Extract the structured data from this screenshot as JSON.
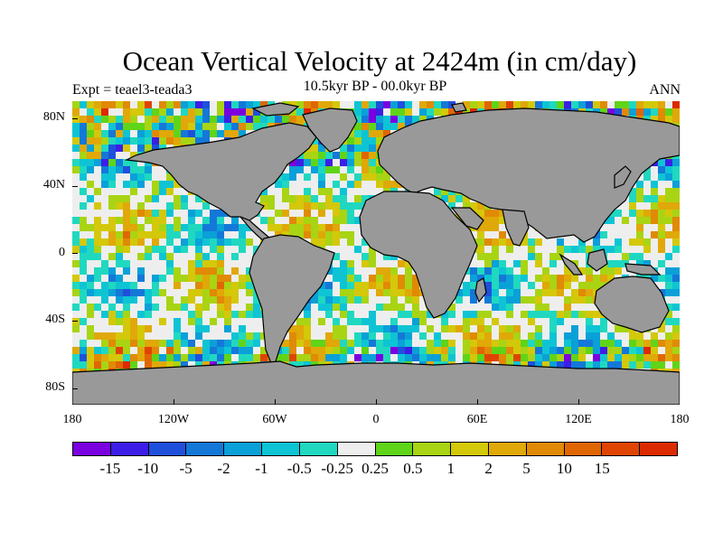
{
  "header": {
    "title": "Ocean Vertical Velocity at 2424m (in cm/day)",
    "experiment": "Expt = teael3-teada3",
    "period": "10.5kyr BP - 00.0kyr BP",
    "season": "ANN"
  },
  "axes": {
    "lat_ticks": [
      "80N",
      "40N",
      "0",
      "40S",
      "80S"
    ],
    "lon_ticks": [
      "180",
      "120W",
      "60W",
      "0",
      "60E",
      "120E",
      "180"
    ]
  },
  "colorbar": {
    "colors": [
      "#7a00e0",
      "#3c1ee6",
      "#1e50dc",
      "#1478d8",
      "#0aa0d8",
      "#0ec4d4",
      "#20d8c0",
      "#eeeeee",
      "#60d418",
      "#a8d414",
      "#d4c80a",
      "#e0a808",
      "#e08a06",
      "#e06604",
      "#e04402",
      "#dc2a00"
    ],
    "labels": [
      "-15",
      "-10",
      "-5",
      "-2",
      "-1",
      "-0.5",
      "-0.25",
      "0.25",
      "0.5",
      "1",
      "2",
      "5",
      "10",
      "15"
    ]
  },
  "map": {
    "land_color": "#999999",
    "projection": "cylindrical equidistant"
  }
}
